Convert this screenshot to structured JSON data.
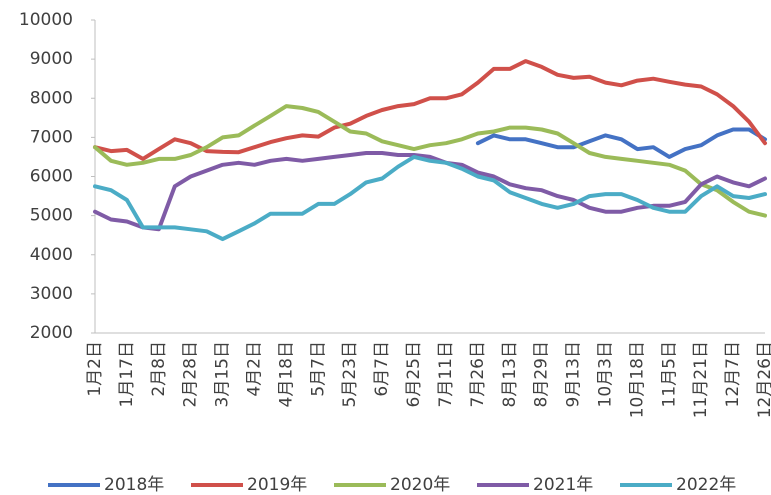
{
  "chart_data": {
    "type": "line",
    "categories": [
      "1月2日",
      null,
      "1月17日",
      null,
      "2月8日",
      null,
      "2月28日",
      null,
      "3月15日",
      null,
      "4月2日",
      null,
      "4月18日",
      null,
      "5月7日",
      null,
      "5月23日",
      null,
      "6月7日",
      null,
      "6月25日",
      null,
      "7月11日",
      null,
      "7月26日",
      null,
      "8月13日",
      null,
      "8月29日",
      null,
      "9月13日",
      null,
      "10月3日",
      null,
      "10月18日",
      null,
      "11月5日",
      null,
      "11月21日",
      null,
      "12月7日",
      null,
      "12月26日"
    ],
    "ylim": [
      2000,
      10000
    ],
    "yticks": [
      2000,
      3000,
      4000,
      5000,
      6000,
      7000,
      8000,
      9000,
      10000
    ],
    "grid": false,
    "legend": "bottom",
    "series": [
      {
        "name": "2018年",
        "color": "#4472c4",
        "values": [
          null,
          null,
          null,
          null,
          null,
          null,
          null,
          null,
          null,
          null,
          null,
          null,
          null,
          null,
          null,
          null,
          null,
          null,
          null,
          null,
          null,
          null,
          null,
          null,
          6850,
          7050,
          6950,
          6950,
          6850,
          6750,
          6750,
          6900,
          7050,
          6950,
          6700,
          6750,
          6500,
          6700,
          6800,
          7050,
          7200,
          7200,
          6950
        ]
      },
      {
        "name": "2019年",
        "color": "#d0504a",
        "values": [
          6750,
          6650,
          6680,
          6450,
          6700,
          6950,
          6850,
          6650,
          6630,
          6620,
          6750,
          6880,
          6980,
          7050,
          7020,
          7250,
          7350,
          7550,
          7700,
          7800,
          7850,
          8000,
          8000,
          8100,
          8400,
          8750,
          8750,
          8950,
          8800,
          8600,
          8520,
          8550,
          8400,
          8330,
          8450,
          8500,
          8420,
          8350,
          8300,
          8100,
          7800,
          7400,
          6850
        ]
      },
      {
        "name": "2020年",
        "color": "#9bbb59",
        "values": [
          6750,
          6400,
          6300,
          6350,
          6450,
          6450,
          6550,
          6750,
          7000,
          7050,
          7300,
          7550,
          7800,
          7750,
          7650,
          7400,
          7150,
          7100,
          6900,
          6800,
          6700,
          6800,
          6850,
          6950,
          7100,
          7150,
          7250,
          7250,
          7200,
          7100,
          6850,
          6600,
          6500,
          6450,
          6400,
          6350,
          6300,
          6150,
          5800,
          5650,
          5350,
          5100,
          5000
        ]
      },
      {
        "name": "2021年",
        "color": "#7f5ba6",
        "values": [
          5100,
          4900,
          4850,
          4700,
          4650,
          5750,
          6000,
          6150,
          6300,
          6350,
          6300,
          6400,
          6450,
          6400,
          6450,
          6500,
          6550,
          6600,
          6600,
          6550,
          6550,
          6500,
          6350,
          6300,
          6100,
          6000,
          5800,
          5700,
          5650,
          5500,
          5400,
          5200,
          5100,
          5100,
          5200,
          5250,
          5250,
          5350,
          5800,
          6000,
          5850,
          5750,
          5950
        ]
      },
      {
        "name": "2022年",
        "color": "#4bacc6",
        "values": [
          5750,
          5650,
          5400,
          4700,
          4700,
          4700,
          4650,
          4600,
          4400,
          4600,
          4800,
          5050,
          5050,
          5050,
          5300,
          5300,
          5550,
          5850,
          5950,
          6250,
          6500,
          6400,
          6350,
          6200,
          6000,
          5900,
          5600,
          5450,
          5300,
          5200,
          5300,
          5500,
          5550,
          5550,
          5400,
          5200,
          5100,
          5100,
          5500,
          5750,
          5500,
          5450,
          5550
        ]
      }
    ]
  }
}
